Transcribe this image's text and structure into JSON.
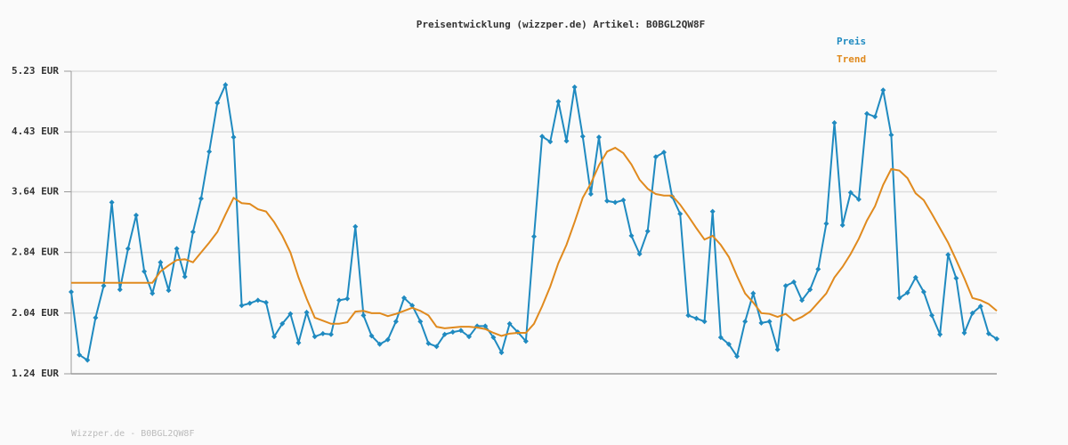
{
  "chart_data": {
    "type": "line",
    "title": "Preisentwicklung (wizzper.de) Artikel: B0BGL2QW8F",
    "footer": "Wizzper.de - B0BGL2QW8F",
    "legend": "top-right",
    "grid": true,
    "markers": true,
    "ylim": [
      1.24,
      5.23
    ],
    "yticks": [
      {
        "value": 1.24,
        "label": "1.24 EUR"
      },
      {
        "value": 2.04,
        "label": "2.04 EUR"
      },
      {
        "value": 2.84,
        "label": "2.84 EUR"
      },
      {
        "value": 3.64,
        "label": "3.64 EUR"
      },
      {
        "value": 4.43,
        "label": "4.43 EUR"
      },
      {
        "value": 5.23,
        "label": "5.23 EUR"
      }
    ],
    "series": [
      {
        "name": "Preis",
        "color": "#1f8ac0",
        "values": [
          2.32,
          1.49,
          1.42,
          1.98,
          2.4,
          3.5,
          2.35,
          2.89,
          3.33,
          2.59,
          2.3,
          2.71,
          2.34,
          2.89,
          2.52,
          3.11,
          3.55,
          4.17,
          4.81,
          5.05,
          4.36,
          2.14,
          2.17,
          2.21,
          2.18,
          1.73,
          1.9,
          2.03,
          1.65,
          2.05,
          1.73,
          1.77,
          1.76,
          2.21,
          2.23,
          3.18,
          2.01,
          1.74,
          1.63,
          1.69,
          1.93,
          2.24,
          2.14,
          1.93,
          1.64,
          1.6,
          1.76,
          1.79,
          1.81,
          1.73,
          1.87,
          1.87,
          1.72,
          1.52,
          1.9,
          1.79,
          1.67,
          3.05,
          4.37,
          4.3,
          4.83,
          4.31,
          5.02,
          4.37,
          3.61,
          4.36,
          3.52,
          3.5,
          3.53,
          3.06,
          2.82,
          3.12,
          4.1,
          4.16,
          3.58,
          3.35,
          2.01,
          1.97,
          1.93,
          3.38,
          1.72,
          1.63,
          1.47,
          1.93,
          2.3,
          1.91,
          1.93,
          1.56,
          2.4,
          2.45,
          2.21,
          2.35,
          2.62,
          3.22,
          4.55,
          3.2,
          3.63,
          3.54,
          4.67,
          4.63,
          4.98,
          4.39,
          2.24,
          2.31,
          2.51,
          2.32,
          2.01,
          1.76,
          2.81,
          2.5,
          1.78,
          2.04,
          2.13,
          1.77,
          1.7
        ]
      },
      {
        "name": "Trend",
        "color": "#e08a1e",
        "values": [
          2.44,
          2.44,
          2.44,
          2.44,
          2.44,
          2.44,
          2.44,
          2.44,
          2.44,
          2.44,
          2.44,
          2.59,
          2.67,
          2.74,
          2.75,
          2.71,
          2.84,
          2.97,
          3.11,
          3.34,
          3.56,
          3.49,
          3.48,
          3.41,
          3.38,
          3.24,
          3.06,
          2.84,
          2.51,
          2.23,
          1.98,
          1.94,
          1.9,
          1.9,
          1.92,
          2.06,
          2.07,
          2.04,
          2.04,
          2.0,
          2.03,
          2.07,
          2.11,
          2.07,
          2.01,
          1.86,
          1.84,
          1.85,
          1.86,
          1.86,
          1.85,
          1.83,
          1.78,
          1.74,
          1.77,
          1.78,
          1.78,
          1.9,
          2.13,
          2.39,
          2.7,
          2.94,
          3.24,
          3.56,
          3.75,
          3.99,
          4.17,
          4.22,
          4.15,
          4.0,
          3.8,
          3.68,
          3.61,
          3.59,
          3.59,
          3.47,
          3.32,
          3.16,
          3.01,
          3.06,
          2.94,
          2.78,
          2.53,
          2.3,
          2.18,
          2.04,
          2.03,
          1.99,
          2.03,
          1.94,
          1.99,
          2.06,
          2.18,
          2.3,
          2.51,
          2.65,
          2.82,
          3.02,
          3.26,
          3.45,
          3.73,
          3.94,
          3.92,
          3.82,
          3.62,
          3.53,
          3.35,
          3.16,
          2.97,
          2.74,
          2.5,
          2.24,
          2.21,
          2.16,
          2.07
        ]
      }
    ]
  }
}
